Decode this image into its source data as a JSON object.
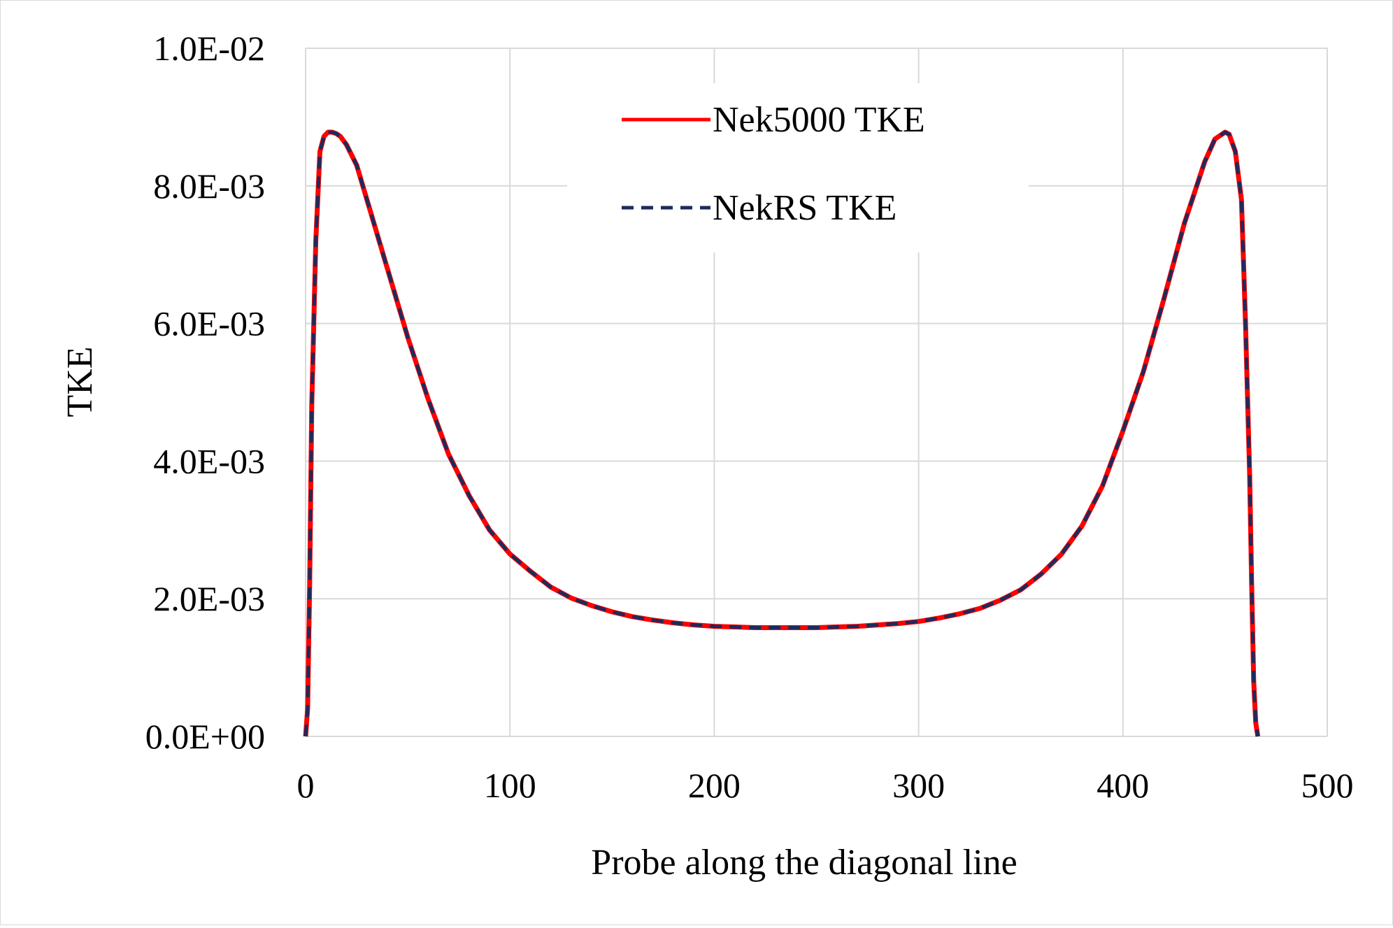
{
  "chart_data": {
    "type": "line",
    "xlabel": "Probe along the diagonal line",
    "ylabel": "TKE",
    "xlim": [
      0,
      500
    ],
    "ylim": [
      0,
      0.01
    ],
    "x_ticks": [
      "0",
      "100",
      "200",
      "300",
      "400",
      "500"
    ],
    "y_ticks": [
      "0.0E+00",
      "2.0E-03",
      "4.0E-03",
      "6.0E-03",
      "8.0E-03",
      "1.0E-02"
    ],
    "grid": true,
    "legend_position": "top-center",
    "series": [
      {
        "name": "Nek5000 TKE",
        "color": "#ff0000",
        "style": "solid",
        "x": [
          0,
          1,
          2,
          3,
          5,
          7,
          9,
          11,
          13,
          15,
          17,
          20,
          25,
          30,
          40,
          50,
          60,
          70,
          80,
          90,
          100,
          110,
          120,
          130,
          140,
          150,
          160,
          170,
          180,
          190,
          200,
          210,
          220,
          230,
          240,
          250,
          260,
          270,
          280,
          290,
          300,
          310,
          320,
          330,
          340,
          350,
          360,
          370,
          380,
          390,
          400,
          410,
          420,
          430,
          440,
          445,
          450,
          452,
          455,
          458,
          460,
          462,
          463,
          464,
          465,
          466
        ],
        "y": [
          0.0,
          0.0004,
          0.0022,
          0.0048,
          0.0072,
          0.0085,
          0.00872,
          0.00878,
          0.00878,
          0.00876,
          0.00872,
          0.0086,
          0.0083,
          0.0078,
          0.0068,
          0.0058,
          0.0049,
          0.0041,
          0.0035,
          0.003,
          0.00265,
          0.0024,
          0.00217,
          0.00201,
          0.0019,
          0.00181,
          0.00174,
          0.00169,
          0.00165,
          0.00162,
          0.0016,
          0.00159,
          0.00158,
          0.00158,
          0.00158,
          0.00158,
          0.00159,
          0.0016,
          0.00162,
          0.00164,
          0.00167,
          0.00172,
          0.00178,
          0.00186,
          0.00198,
          0.00213,
          0.00236,
          0.00265,
          0.00306,
          0.00364,
          0.00444,
          0.0053,
          0.00635,
          0.00745,
          0.00835,
          0.00868,
          0.00878,
          0.00875,
          0.0085,
          0.0078,
          0.006,
          0.0038,
          0.0022,
          0.0008,
          0.0002,
          0.0
        ]
      },
      {
        "name": "NekRS TKE",
        "color": "#1f2a5c",
        "style": "dashed",
        "x": [
          0,
          1,
          2,
          3,
          5,
          7,
          9,
          11,
          13,
          15,
          17,
          20,
          25,
          30,
          40,
          50,
          60,
          70,
          80,
          90,
          100,
          110,
          120,
          130,
          140,
          150,
          160,
          170,
          180,
          190,
          200,
          210,
          220,
          230,
          240,
          250,
          260,
          270,
          280,
          290,
          300,
          310,
          320,
          330,
          340,
          350,
          360,
          370,
          380,
          390,
          400,
          410,
          420,
          430,
          440,
          445,
          450,
          452,
          455,
          458,
          460,
          462,
          463,
          464,
          465,
          466
        ],
        "y": [
          0.0,
          0.0004,
          0.0022,
          0.0048,
          0.0072,
          0.0085,
          0.00872,
          0.00878,
          0.00878,
          0.00876,
          0.00872,
          0.0086,
          0.0083,
          0.0078,
          0.0068,
          0.0058,
          0.0049,
          0.0041,
          0.0035,
          0.003,
          0.00265,
          0.0024,
          0.00217,
          0.00201,
          0.0019,
          0.00181,
          0.00174,
          0.00169,
          0.00165,
          0.00162,
          0.0016,
          0.00159,
          0.00158,
          0.00158,
          0.00158,
          0.00158,
          0.00159,
          0.0016,
          0.00162,
          0.00164,
          0.00167,
          0.00172,
          0.00178,
          0.00186,
          0.00198,
          0.00213,
          0.00236,
          0.00265,
          0.00306,
          0.00364,
          0.00444,
          0.0053,
          0.00635,
          0.00745,
          0.00835,
          0.00868,
          0.00878,
          0.00875,
          0.0085,
          0.0078,
          0.006,
          0.0038,
          0.0022,
          0.0008,
          0.0002,
          0.0
        ]
      }
    ]
  }
}
